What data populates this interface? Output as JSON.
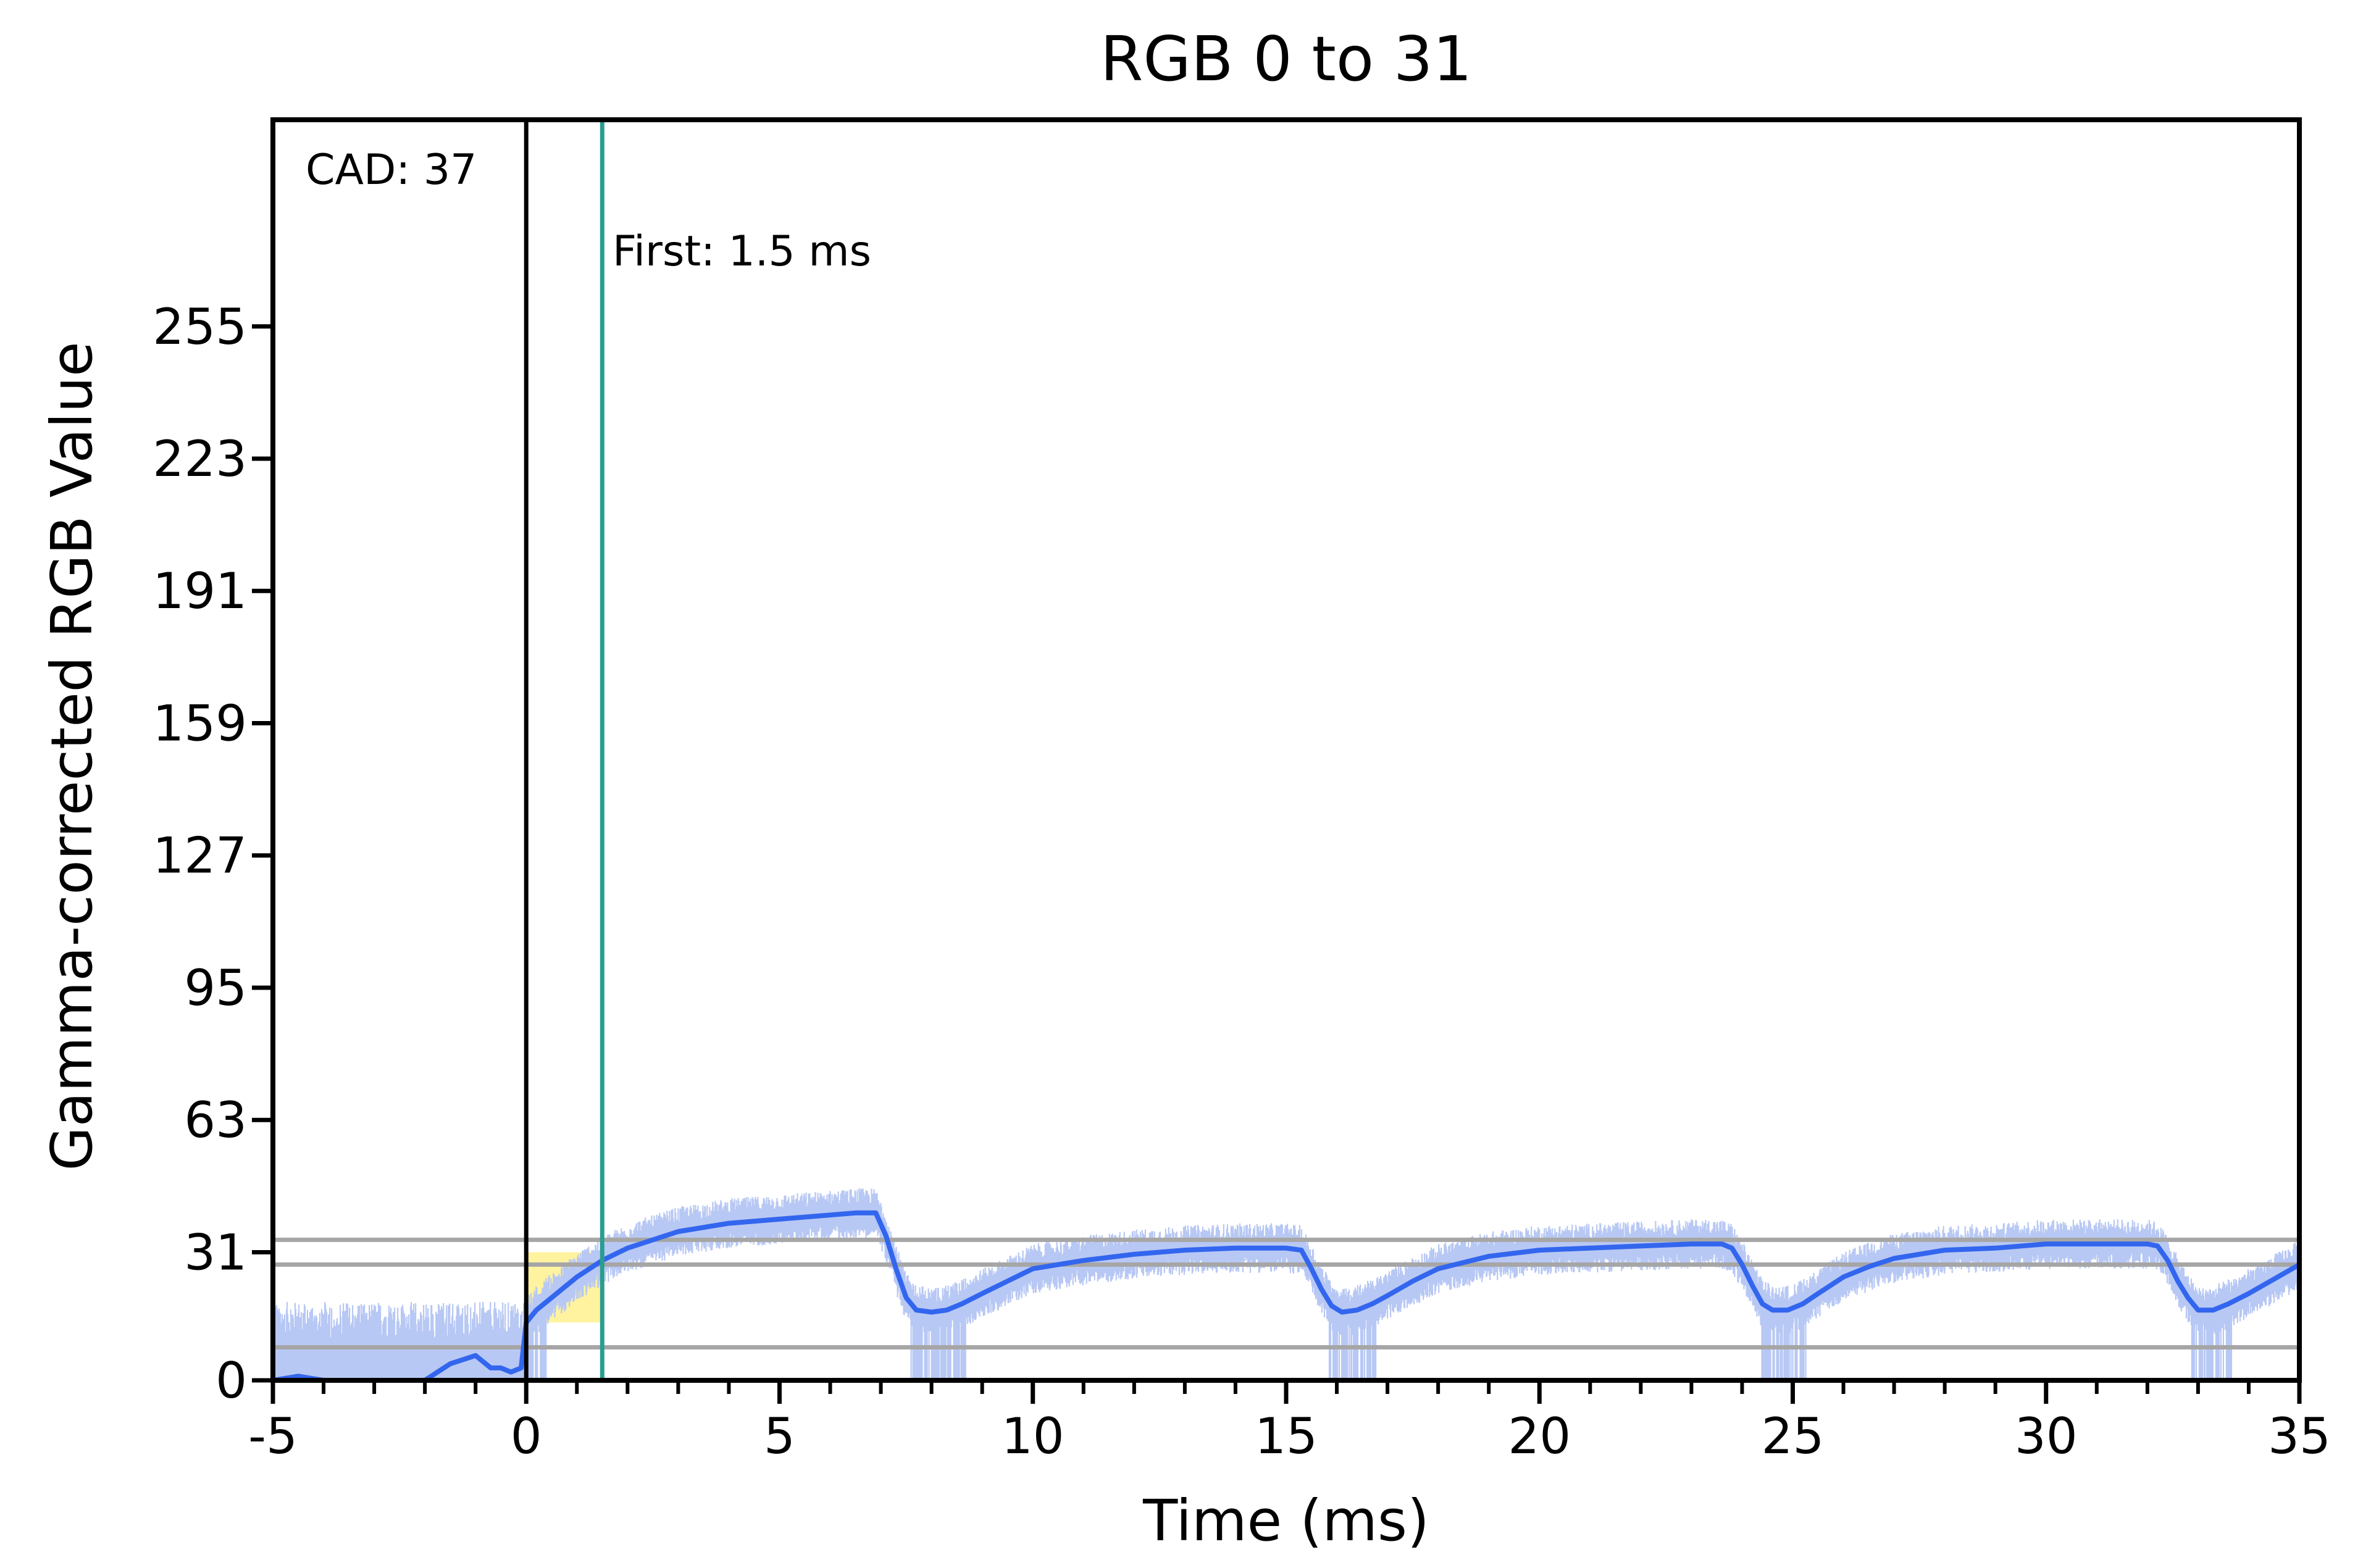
{
  "chart_data": {
    "type": "line",
    "title": "RGB 0 to 31",
    "xlabel": "Time (ms)",
    "ylabel": "Gamma-corrected RGB Value",
    "xlim": [
      -5,
      35
    ],
    "ylim": [
      0,
      305
    ],
    "x_ticks": [
      -5,
      0,
      5,
      10,
      15,
      20,
      25,
      30,
      35
    ],
    "x_tick_labels": [
      "-5",
      "0",
      "5",
      "10",
      "15",
      "20",
      "25",
      "30",
      "35"
    ],
    "x_minor_step": 1,
    "y_ticks": [
      0,
      31,
      63,
      95,
      127,
      159,
      191,
      223,
      255
    ],
    "y_tick_labels": [
      "0",
      "31",
      "63",
      "95",
      "127",
      "159",
      "191",
      "223",
      "255"
    ],
    "reference_lines_y": [
      34,
      28,
      8
    ],
    "markers": [
      {
        "x": 0,
        "color": "#000000"
      },
      {
        "x": 1.5,
        "color": "#2a9d8f"
      }
    ],
    "annotations": {
      "cad": "CAD: 37",
      "first": "First: 1.5 ms"
    },
    "highlight_region": {
      "x": [
        0,
        1.5
      ],
      "color": "#fff3a0"
    },
    "series": [
      {
        "color": "#3366ee",
        "x": [
          -5,
          -4.5,
          -4,
          -3,
          -2,
          -1.5,
          -1,
          -0.7,
          -0.5,
          -0.3,
          -0.1,
          0,
          0.2,
          0.5,
          1,
          1.5,
          2,
          3,
          4,
          5,
          6,
          6.5,
          6.9,
          7.1,
          7.3,
          7.5,
          7.7,
          8,
          8.3,
          8.6,
          9,
          9.5,
          10,
          11,
          12,
          13,
          14,
          15,
          15.3,
          15.5,
          15.7,
          15.9,
          16.1,
          16.4,
          16.7,
          17,
          17.5,
          18,
          19,
          20,
          21,
          22,
          23,
          23.6,
          23.8,
          24,
          24.2,
          24.4,
          24.6,
          24.9,
          25.2,
          25.5,
          26,
          26.5,
          27,
          28,
          29,
          30,
          31,
          32,
          32.2,
          32.4,
          32.6,
          32.8,
          33,
          33.3,
          33.6,
          34,
          34.5,
          35
        ],
        "y": [
          0,
          1,
          0,
          0,
          0,
          4,
          6,
          3,
          3,
          2,
          3,
          14,
          17,
          20,
          25,
          29,
          32,
          36,
          38,
          39,
          40,
          40.5,
          40.5,
          35,
          27,
          20,
          17,
          16.5,
          17,
          18.5,
          21,
          24,
          27,
          29,
          30.5,
          31.5,
          32,
          32,
          31.5,
          27,
          22,
          18,
          16.5,
          17,
          18.5,
          20.5,
          24,
          27,
          30,
          31.5,
          32,
          32.5,
          33,
          33,
          32,
          28,
          23,
          18.5,
          17,
          17,
          18.5,
          21,
          25,
          27.5,
          29.5,
          31.5,
          32,
          33,
          33,
          33,
          32.5,
          29,
          24,
          20,
          17,
          17,
          18.5,
          21,
          24.5,
          28
        ]
      }
    ],
    "raw_signal_color": "#b8c8f4"
  }
}
